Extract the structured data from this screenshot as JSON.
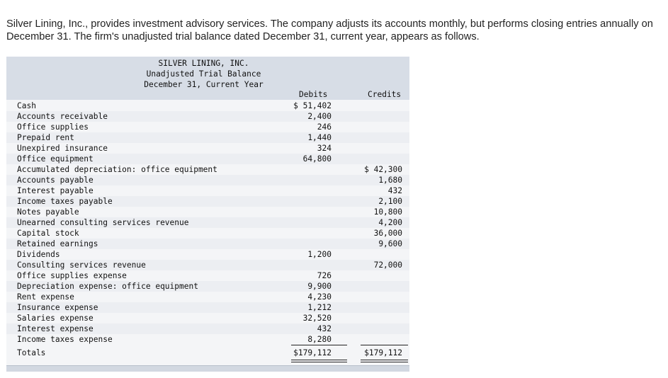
{
  "intro_text": "Silver Lining, Inc., provides investment advisory services. The company adjusts its accounts monthly, but performs closing entries annually on December 31. The firm's unadjusted trial balance dated December 31, current year, appears as follows.",
  "table": {
    "company": "SILVER LINING, INC.",
    "title": "Unadjusted Trial Balance",
    "date": "December 31, Current Year",
    "debits_header": "Debits",
    "credits_header": "Credits",
    "rows": [
      {
        "account": "Cash",
        "debit": "$ 51,402",
        "credit": ""
      },
      {
        "account": "Accounts receivable",
        "debit": "2,400",
        "credit": ""
      },
      {
        "account": "Office supplies",
        "debit": "246",
        "credit": ""
      },
      {
        "account": "Prepaid rent",
        "debit": "1,440",
        "credit": ""
      },
      {
        "account": "Unexpired insurance",
        "debit": "324",
        "credit": ""
      },
      {
        "account": "Office equipment",
        "debit": "64,800",
        "credit": ""
      },
      {
        "account": "Accumulated depreciation: office equipment",
        "debit": "",
        "credit": "$ 42,300"
      },
      {
        "account": "Accounts payable",
        "debit": "",
        "credit": "1,680"
      },
      {
        "account": "Interest payable",
        "debit": "",
        "credit": "432"
      },
      {
        "account": "Income taxes payable",
        "debit": "",
        "credit": "2,100"
      },
      {
        "account": "Notes payable",
        "debit": "",
        "credit": "10,800"
      },
      {
        "account": "Unearned consulting services revenue",
        "debit": "",
        "credit": "4,200"
      },
      {
        "account": "Capital stock",
        "debit": "",
        "credit": "36,000"
      },
      {
        "account": "Retained earnings",
        "debit": "",
        "credit": "9,600"
      },
      {
        "account": "Dividends",
        "debit": "1,200",
        "credit": ""
      },
      {
        "account": "Consulting services revenue",
        "debit": "",
        "credit": "72,000"
      },
      {
        "account": "Office supplies expense",
        "debit": "726",
        "credit": ""
      },
      {
        "account": "Depreciation expense: office equipment",
        "debit": "9,900",
        "credit": ""
      },
      {
        "account": "Rent expense",
        "debit": "4,230",
        "credit": ""
      },
      {
        "account": "Insurance expense",
        "debit": "1,212",
        "credit": ""
      },
      {
        "account": "Salaries expense",
        "debit": "32,520",
        "credit": ""
      },
      {
        "account": "Interest expense",
        "debit": "432",
        "credit": ""
      },
      {
        "account": "Income taxes expense",
        "debit": "8,280",
        "credit": ""
      }
    ],
    "totals": {
      "label": "Totals",
      "debit": "$179,112",
      "credit": "$179,112"
    }
  }
}
